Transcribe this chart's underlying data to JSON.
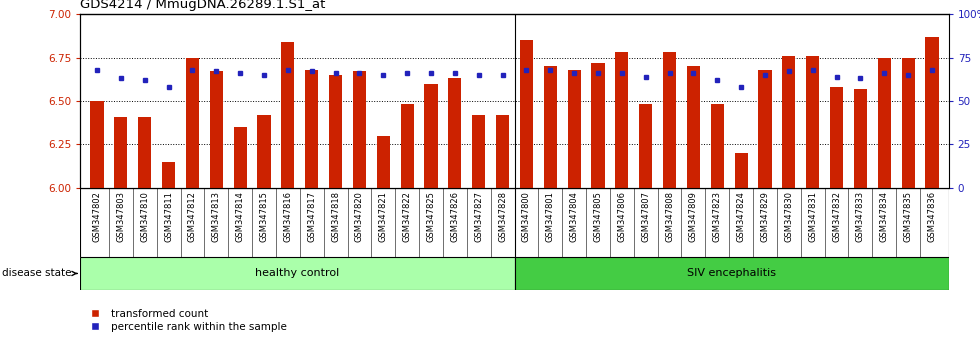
{
  "title": "GDS4214 / MmugDNA.26289.1.S1_at",
  "samples": [
    "GSM347802",
    "GSM347803",
    "GSM347810",
    "GSM347811",
    "GSM347812",
    "GSM347813",
    "GSM347814",
    "GSM347815",
    "GSM347816",
    "GSM347817",
    "GSM347818",
    "GSM347820",
    "GSM347821",
    "GSM347822",
    "GSM347825",
    "GSM347826",
    "GSM347827",
    "GSM347828",
    "GSM347800",
    "GSM347801",
    "GSM347804",
    "GSM347805",
    "GSM347806",
    "GSM347807",
    "GSM347808",
    "GSM347809",
    "GSM347823",
    "GSM347824",
    "GSM347829",
    "GSM347830",
    "GSM347831",
    "GSM347832",
    "GSM347833",
    "GSM347834",
    "GSM347835",
    "GSM347836"
  ],
  "red_values": [
    6.5,
    6.41,
    6.41,
    6.15,
    6.75,
    6.67,
    6.35,
    6.42,
    6.84,
    6.68,
    6.65,
    6.67,
    6.3,
    6.48,
    6.6,
    6.63,
    6.42,
    6.42,
    6.85,
    6.7,
    6.68,
    6.72,
    6.78,
    6.48,
    6.78,
    6.7,
    6.48,
    6.2,
    6.68,
    6.76,
    6.76,
    6.58,
    6.57,
    6.75,
    6.75,
    6.87
  ],
  "blue_values": [
    68,
    63,
    62,
    58,
    68,
    67,
    66,
    65,
    68,
    67,
    66,
    66,
    65,
    66,
    66,
    66,
    65,
    65,
    68,
    68,
    66,
    66,
    66,
    64,
    66,
    66,
    62,
    58,
    65,
    67,
    68,
    64,
    63,
    66,
    65,
    68
  ],
  "healthy_count": 18,
  "siv_count": 18,
  "ylim_left": [
    6.0,
    7.0
  ],
  "ylim_right": [
    0,
    100
  ],
  "yticks_left": [
    6.0,
    6.25,
    6.5,
    6.75,
    7.0
  ],
  "yticks_right": [
    0,
    25,
    50,
    75,
    100
  ],
  "bar_color": "#CC2200",
  "dot_color": "#2222BB",
  "healthy_color": "#AAFFAA",
  "siv_color": "#44CC44",
  "bar_bottom": 6.0,
  "label_bg_color": "#C8C8C8",
  "figsize": [
    9.8,
    3.54
  ],
  "dpi": 100
}
